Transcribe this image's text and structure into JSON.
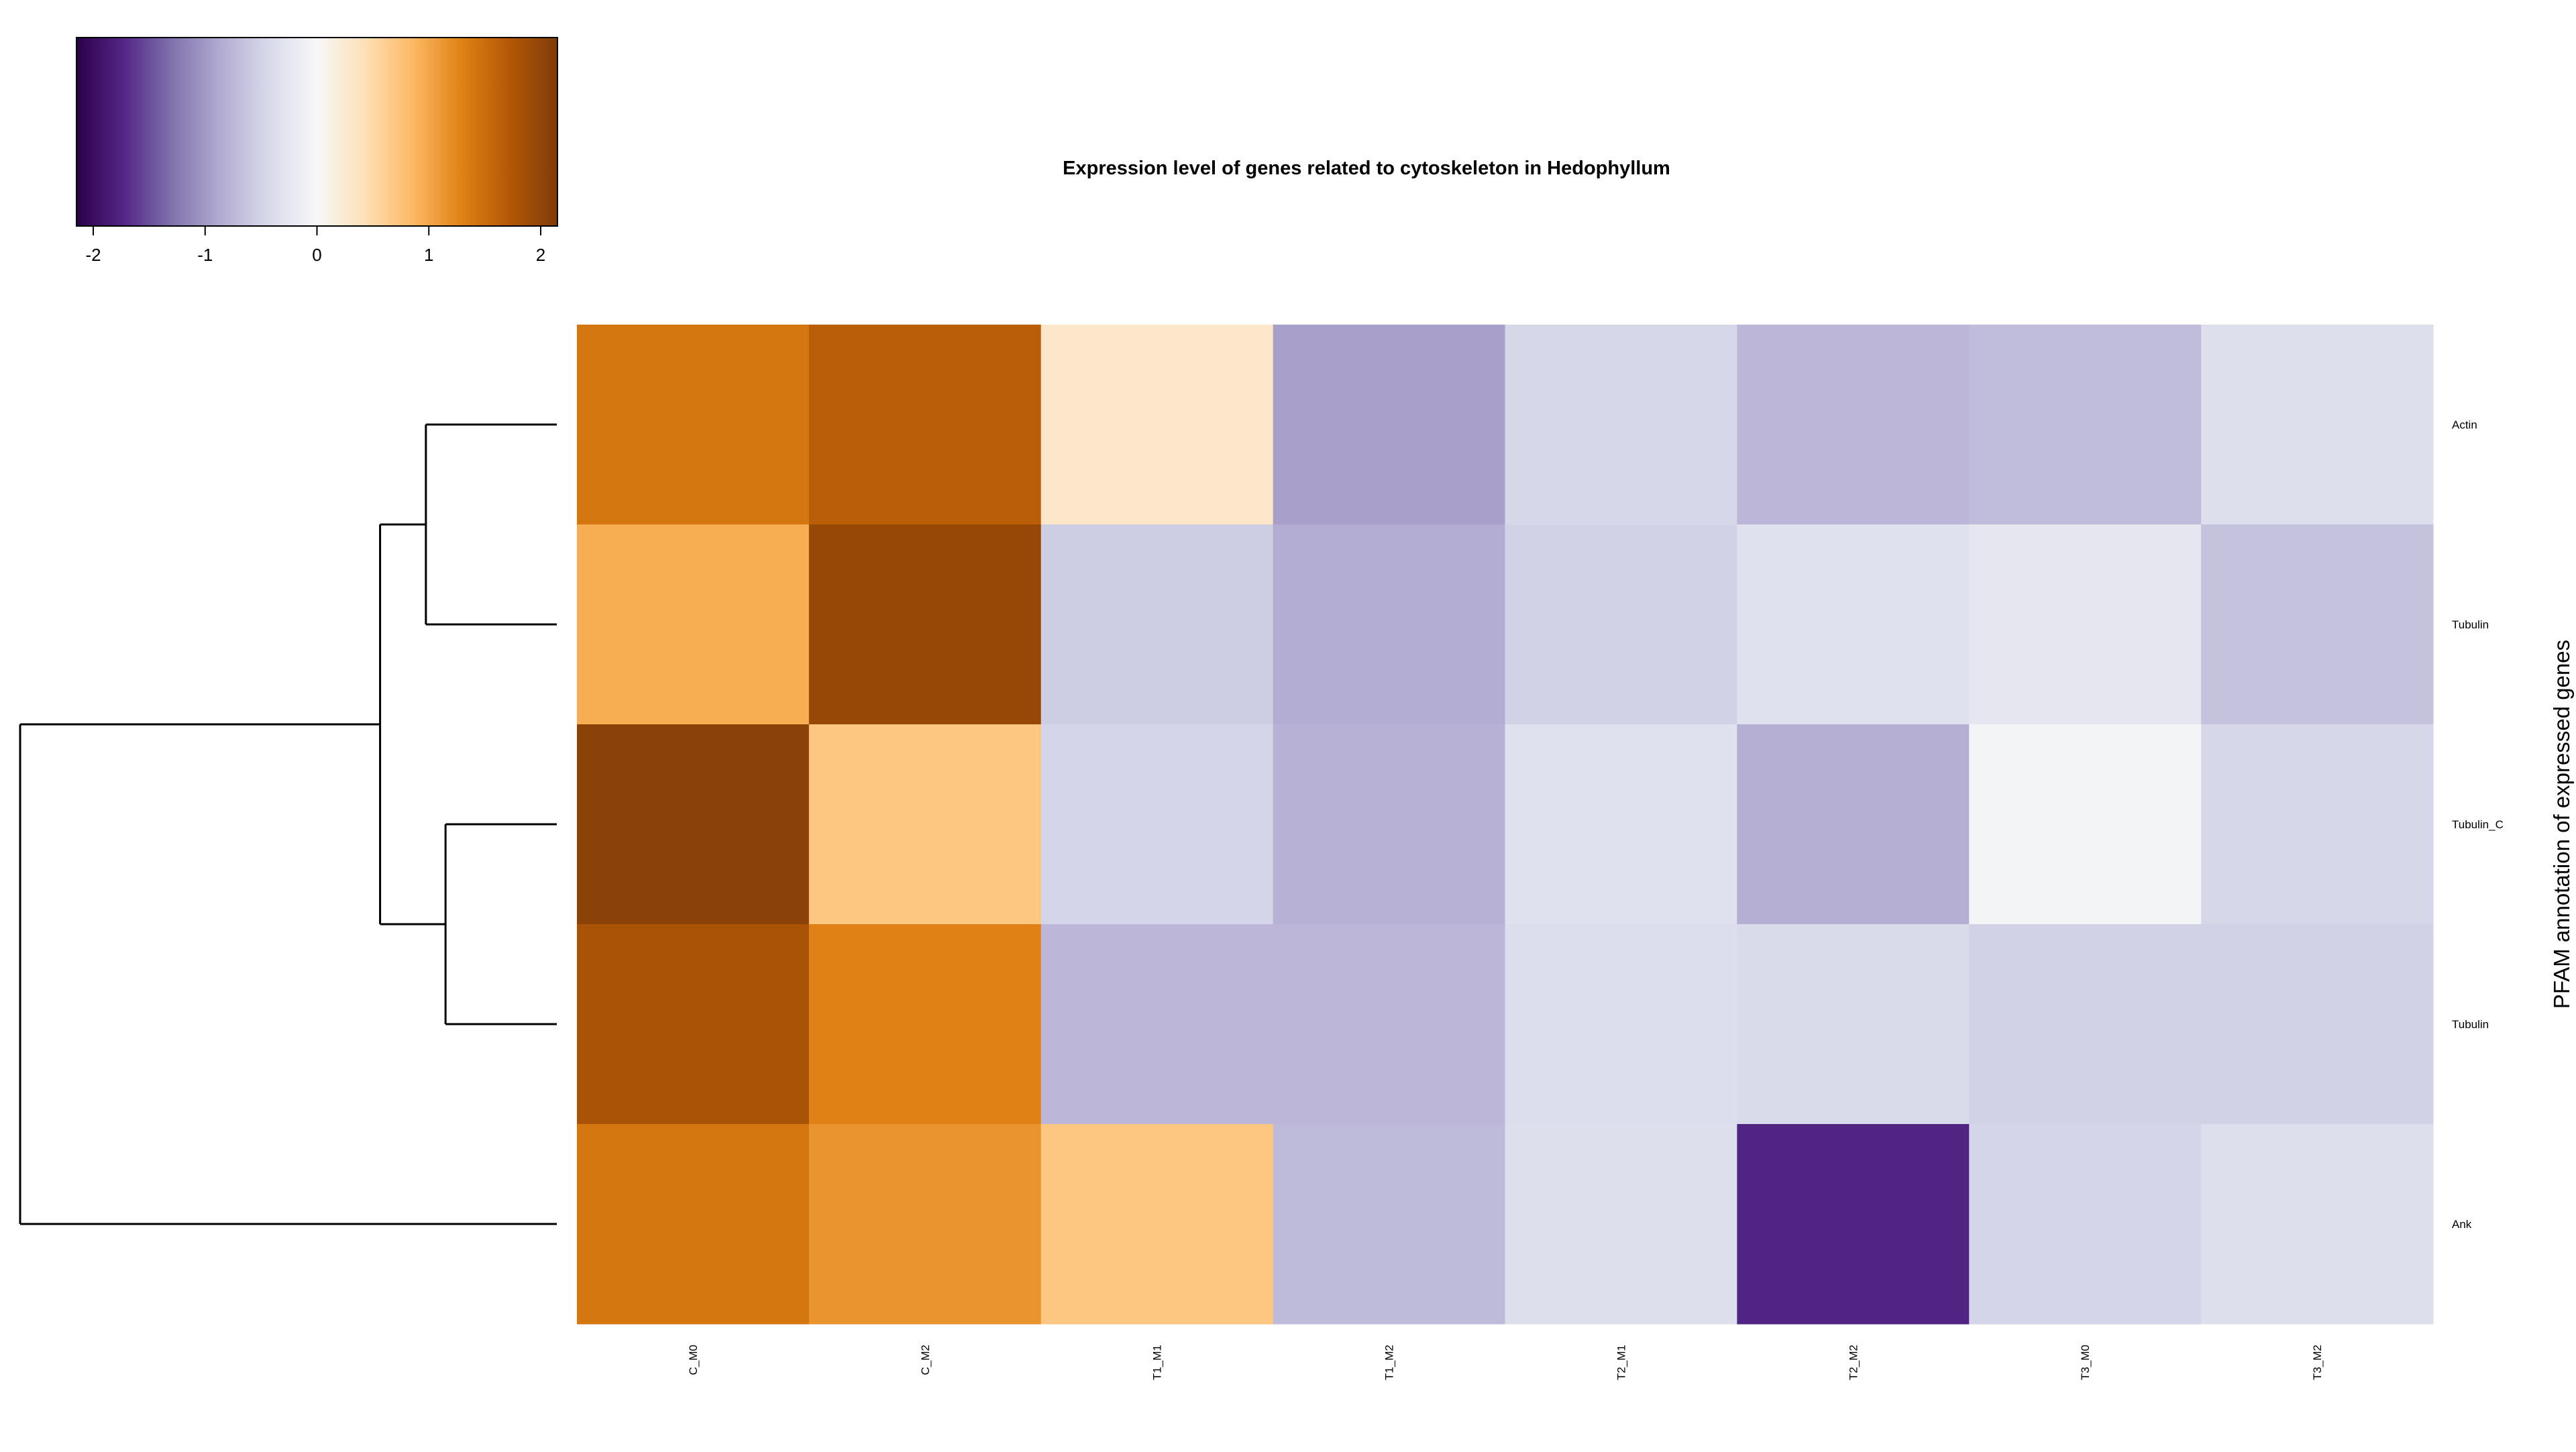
{
  "chart_data": {
    "type": "heatmap",
    "title": "Expression level of genes related to cytoskeleton in Hedophyllum",
    "ylabel": "PFAM annotation of expressed genes",
    "xlabel": "",
    "columns": [
      "C_M0",
      "C_M2",
      "T1_M1",
      "T1_M2",
      "T2_M1",
      "T2_M2",
      "T3_M0",
      "T3_M2"
    ],
    "rows": [
      "Actin",
      "Tubulin",
      "Tubulin_C",
      "Tubulin",
      "Ank"
    ],
    "values": [
      [
        1.4,
        1.65,
        0.3,
        -0.95,
        -0.45,
        -0.75,
        -0.7,
        -0.35
      ],
      [
        0.95,
        1.95,
        -0.55,
        -0.85,
        -0.5,
        -0.32,
        -0.25,
        -0.65
      ],
      [
        2.05,
        0.7,
        -0.48,
        -0.8,
        -0.32,
        -0.82,
        -0.05,
        -0.45
      ],
      [
        1.8,
        1.3,
        -0.75,
        -0.75,
        -0.37,
        -0.42,
        -0.5,
        -0.5
      ],
      [
        1.4,
        1.15,
        0.7,
        -0.72,
        -0.36,
        -1.75,
        -0.48,
        -0.35
      ]
    ],
    "colorscale": {
      "min": -2.15,
      "max": 2.15,
      "stops": [
        "#2d004b",
        "#542788",
        "#8073ac",
        "#b2abd2",
        "#d8daeb",
        "#f7f7f7",
        "#fee0b6",
        "#fdb863",
        "#e08214",
        "#b35806",
        "#7f3b08"
      ]
    },
    "colorbar": {
      "ticks": [
        -2,
        -1,
        0,
        1,
        2
      ],
      "tick_labels": [
        "-2",
        "-1",
        "0",
        "1",
        "2"
      ]
    },
    "row_dendrogram": {
      "merges": [
        [
          0,
          1,
          1.0
        ],
        [
          2,
          3,
          0.85
        ],
        [
          5,
          6,
          1.35
        ],
        [
          4,
          7,
          4.1
        ]
      ]
    },
    "legend_placement": "top-left"
  }
}
